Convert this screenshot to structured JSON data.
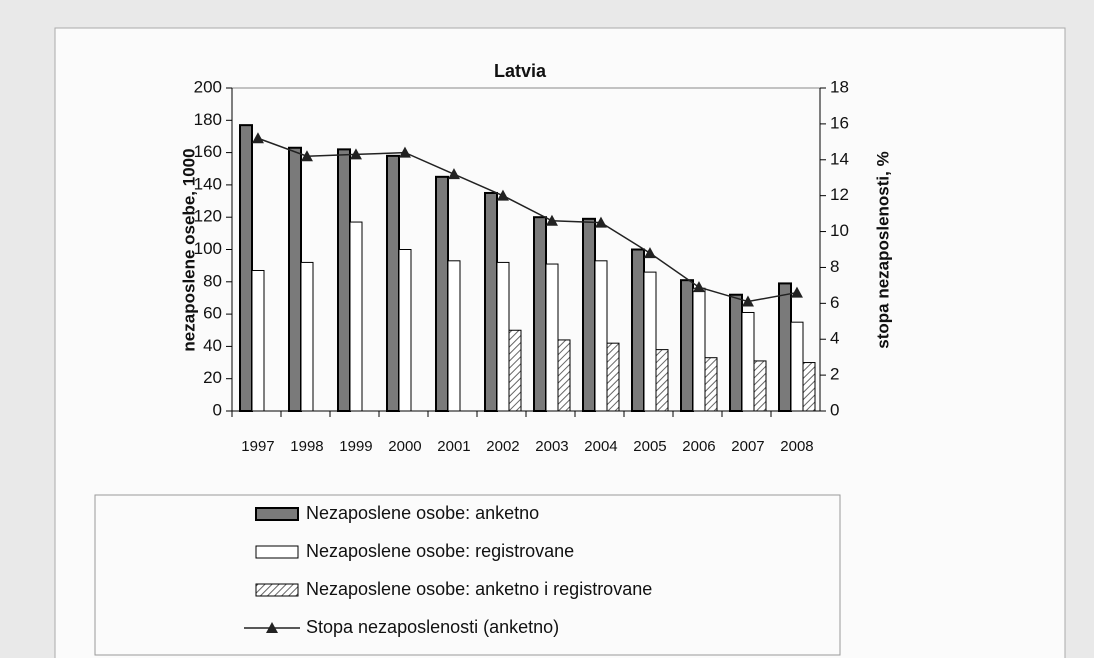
{
  "chart_data": {
    "type": "bar",
    "title": "Latvia",
    "y_label": "nezaposlene osebe, 1000",
    "y2_label": "stopa nezaposlenosti, %",
    "categories": [
      "1997",
      "1998",
      "1999",
      "2000",
      "2001",
      "2002",
      "2003",
      "2004",
      "2005",
      "2006",
      "2007",
      "2008"
    ],
    "series": [
      {
        "name": "Nezaposlene osobe: anketno",
        "color": "#7a7a7a",
        "values": [
          177,
          163,
          162,
          158,
          145,
          135,
          120,
          119,
          100,
          81,
          72,
          79
        ]
      },
      {
        "name": "Nezaposlene osobe: registrovane",
        "color": "#ffffff",
        "values": [
          87,
          92,
          117,
          100,
          93,
          92,
          91,
          93,
          86,
          76,
          61,
          55
        ]
      },
      {
        "name": "Nezaposlene osobe: anketno i registrovane",
        "color": "#888888",
        "pattern": "hatch",
        "values": [
          null,
          null,
          null,
          null,
          null,
          50,
          44,
          42,
          38,
          33,
          31,
          30
        ]
      },
      {
        "name": "Stopa nezaposlenosti (anketno)",
        "color": "#222222",
        "type": "line",
        "axis": "y2",
        "values": [
          15.2,
          14.2,
          14.3,
          14.4,
          13.2,
          12.0,
          10.6,
          10.5,
          8.8,
          6.9,
          6.1,
          6.6
        ]
      }
    ],
    "ylim": [
      0,
      200
    ],
    "yticks": [
      0,
      20,
      40,
      60,
      80,
      100,
      120,
      140,
      160,
      180,
      200
    ],
    "y2lim": [
      0,
      18
    ],
    "y2ticks": [
      0,
      2,
      4,
      6,
      8,
      10,
      12,
      14,
      16,
      18
    ],
    "legend": "bottom",
    "grid": false
  }
}
